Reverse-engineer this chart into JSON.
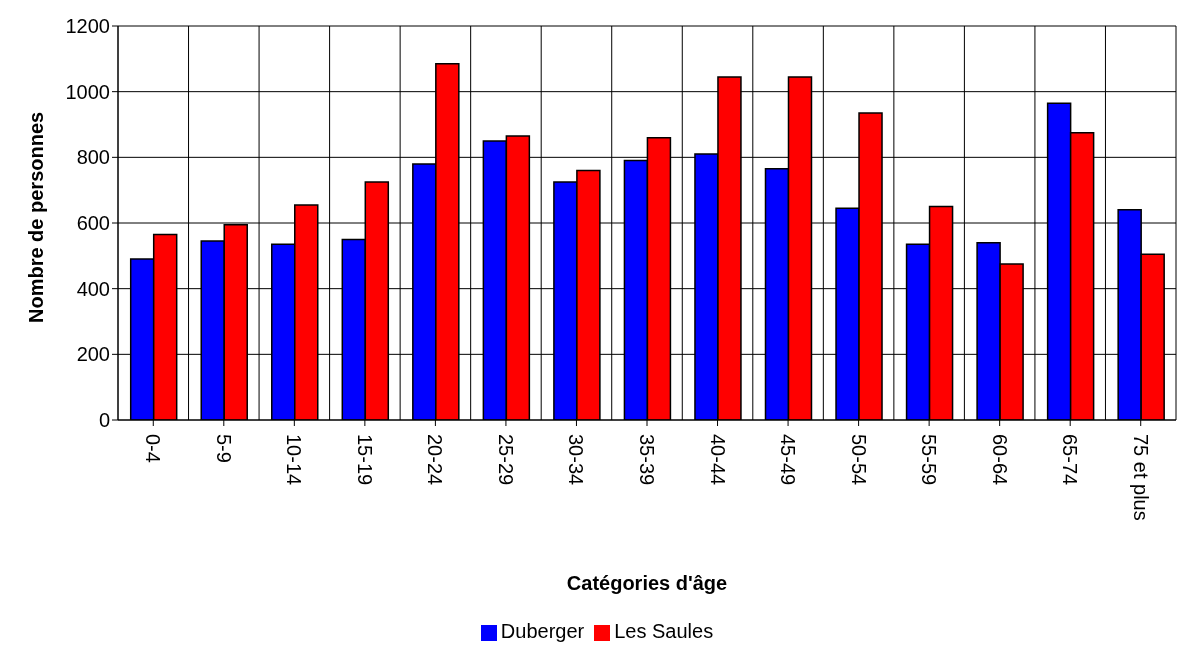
{
  "chart_data": {
    "type": "bar",
    "xlabel": "Catégories d'âge",
    "ylabel": "Nombre de personnes",
    "categories": [
      "0-4",
      "5-9",
      "10-14",
      "15-19",
      "20-24",
      "25-29",
      "30-34",
      "35-39",
      "40-44",
      "45-49",
      "50-54",
      "55-59",
      "60-64",
      "65-74",
      "75 et plus"
    ],
    "series": [
      {
        "name": "Duberger",
        "color": "#0000ff",
        "values": [
          490,
          545,
          535,
          550,
          780,
          850,
          725,
          790,
          810,
          765,
          645,
          535,
          540,
          965,
          640
        ]
      },
      {
        "name": "Les Saules",
        "color": "#ff0000",
        "values": [
          565,
          595,
          655,
          725,
          1085,
          865,
          760,
          860,
          1045,
          1045,
          935,
          650,
          475,
          875,
          505
        ]
      }
    ],
    "ylim": [
      0,
      1200
    ],
    "yticks": [
      0,
      200,
      400,
      600,
      800,
      1000,
      1200
    ],
    "grid": true,
    "legend": "bottom"
  }
}
